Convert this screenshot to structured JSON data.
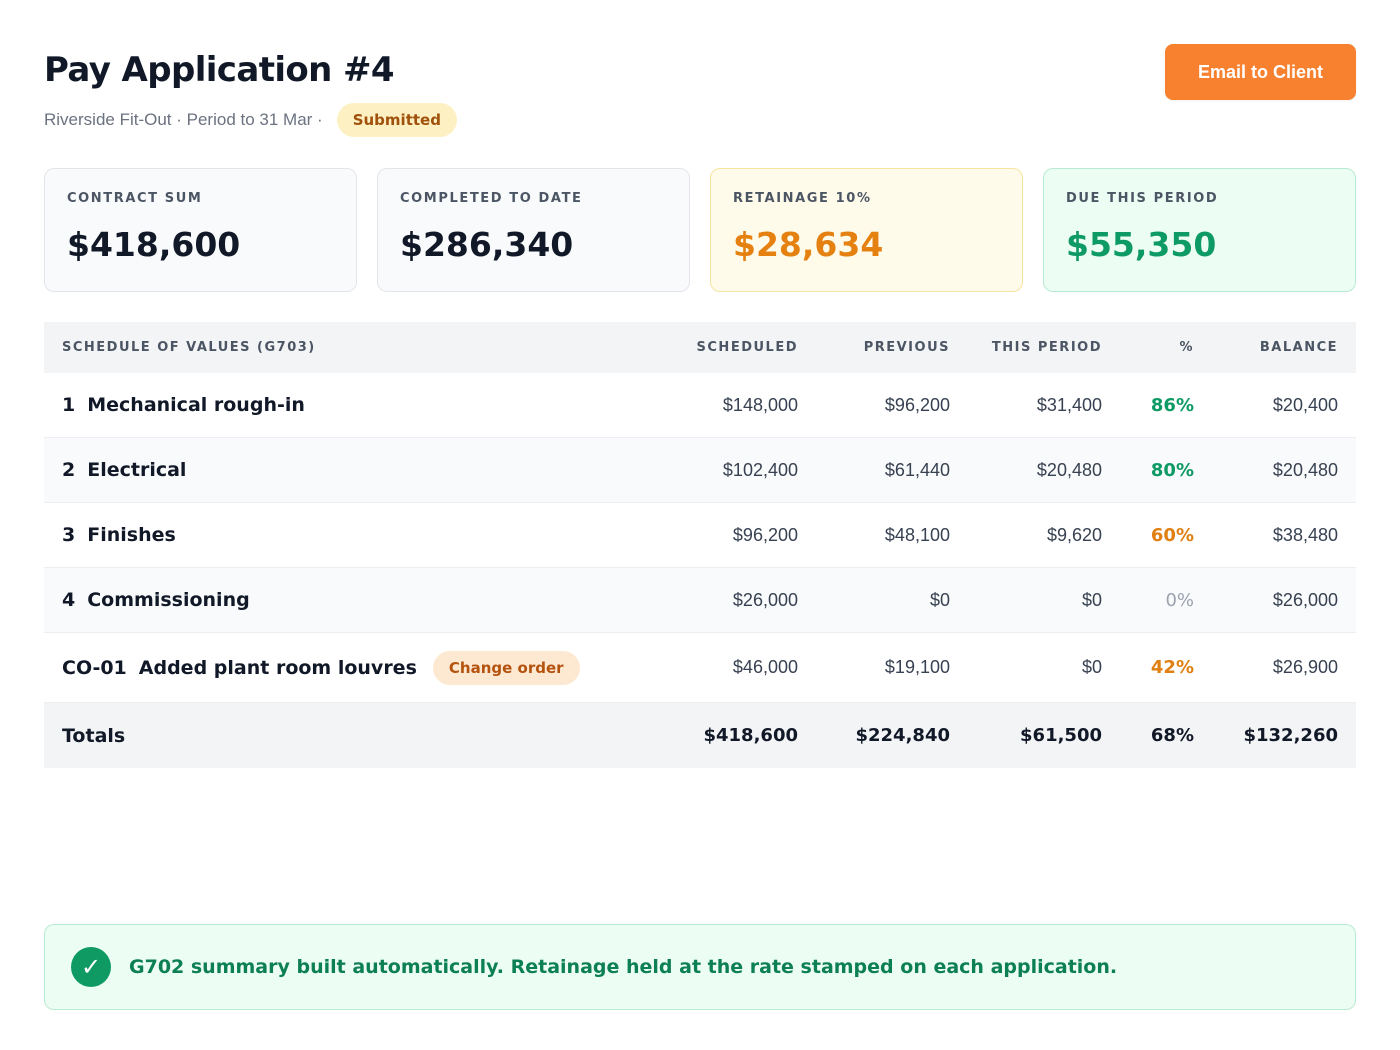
{
  "header": {
    "title": "Pay Application #4",
    "subtitle": "Riverside Fit-Out · Period to 31 Mar ·",
    "status": "Submitted",
    "email_button": "Email to Client"
  },
  "kpis": [
    {
      "label": "CONTRACT SUM",
      "value": "$418,600"
    },
    {
      "label": "COMPLETED TO DATE",
      "value": "$286,340"
    },
    {
      "label": "RETAINAGE 10%",
      "value": "$28,634"
    },
    {
      "label": "DUE THIS PERIOD",
      "value": "$55,350"
    }
  ],
  "sov": {
    "columns": {
      "name": "SCHEDULE OF VALUES (G703)",
      "scheduled": "SCHEDULED",
      "previous": "PREVIOUS",
      "this_period": "THIS PERIOD",
      "pct": "%",
      "balance": "BALANCE"
    },
    "rows": [
      {
        "code": "1",
        "label": "Mechanical rough-in",
        "scheduled": "$148,000",
        "previous": "$96,200",
        "this_period": "$31,400",
        "pct": "86%",
        "balance": "$20,400"
      },
      {
        "code": "2",
        "label": "Electrical",
        "scheduled": "$102,400",
        "previous": "$61,440",
        "this_period": "$20,480",
        "pct": "80%",
        "balance": "$20,480"
      },
      {
        "code": "3",
        "label": "Finishes",
        "scheduled": "$96,200",
        "previous": "$48,100",
        "this_period": "$9,620",
        "pct": "60%",
        "balance": "$38,480"
      },
      {
        "code": "4",
        "label": "Commissioning",
        "scheduled": "$26,000",
        "previous": "$0",
        "this_period": "$0",
        "pct": "0%",
        "balance": "$26,000"
      },
      {
        "code": "CO-01",
        "label": "Added plant room louvres",
        "badge": "Change order",
        "scheduled": "$46,000",
        "previous": "$19,100",
        "this_period": "$0",
        "pct": "42%",
        "balance": "$26,900"
      }
    ],
    "totals": {
      "label": "Totals",
      "scheduled": "$418,600",
      "previous": "$224,840",
      "this_period": "$61,500",
      "pct": "68%",
      "balance": "$132,260"
    }
  },
  "notice": {
    "icon": "check-icon",
    "text": "G702 summary built automatically. Retainage held at the rate stamped on each application."
  },
  "colors": {
    "accent": "#f7812f",
    "success": "#0e9a65",
    "warning": "#e58110"
  }
}
